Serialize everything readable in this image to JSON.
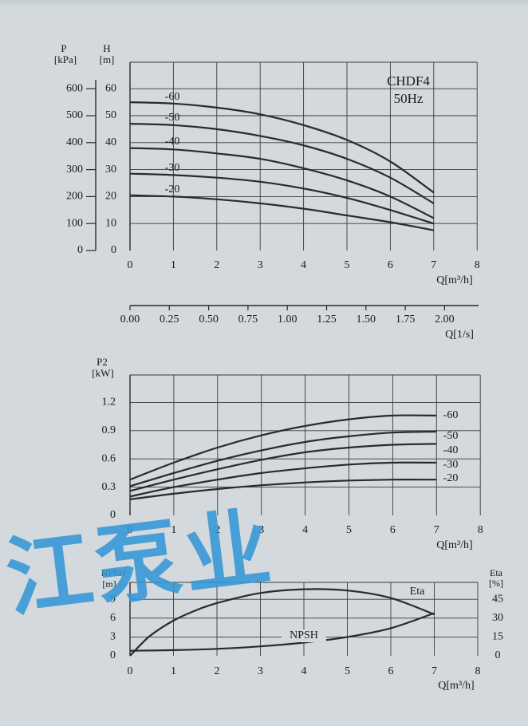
{
  "chart_data": [
    {
      "type": "line",
      "model": "CHDF4",
      "frequency": "50Hz",
      "x_label_q": "Q[m³/h]",
      "x_ticks_q": [
        0,
        1,
        2,
        3,
        4,
        5,
        6,
        7,
        8
      ],
      "x_label_ls": "Q[1/s]",
      "x_ticks_ls": [
        "0.00",
        "0.25",
        "0.50",
        "0.75",
        "1.00",
        "1.25",
        "1.50",
        "1.75",
        "2.00"
      ],
      "y_label_h": [
        "H",
        "[m]"
      ],
      "y_ticks_h": [
        0,
        10,
        20,
        30,
        40,
        50,
        60
      ],
      "y_label_p": [
        "P",
        "[kPa]"
      ],
      "y_ticks_p": [
        0,
        100,
        200,
        300,
        400,
        500,
        600
      ],
      "ylim": [
        0,
        60
      ],
      "xlim": [
        0,
        8
      ],
      "grid": true,
      "series": [
        {
          "name": "-60",
          "x": [
            0,
            1,
            2,
            3,
            4,
            5,
            6,
            7
          ],
          "values": [
            55,
            54.5,
            53,
            50.5,
            46.5,
            41,
            33,
            21.5
          ]
        },
        {
          "name": "-50",
          "x": [
            0,
            1,
            2,
            3,
            4,
            5,
            6,
            7
          ],
          "values": [
            47,
            46.5,
            45,
            42.5,
            39,
            34,
            27,
            17.5
          ]
        },
        {
          "name": "-40",
          "x": [
            0,
            1,
            2,
            3,
            4,
            5,
            6,
            7
          ],
          "values": [
            38,
            37.5,
            36,
            34,
            30.5,
            26,
            20,
            12
          ]
        },
        {
          "name": "-30",
          "x": [
            0,
            1,
            2,
            3,
            4,
            5,
            6,
            7
          ],
          "values": [
            28.5,
            28,
            27,
            25.5,
            23,
            19.5,
            15,
            10
          ]
        },
        {
          "name": "-20",
          "x": [
            0,
            1,
            2,
            3,
            4,
            5,
            6,
            7
          ],
          "values": [
            20.5,
            20,
            19,
            17.5,
            15.5,
            13,
            10.5,
            7.5
          ]
        }
      ]
    },
    {
      "type": "line",
      "y_label": [
        "P2",
        "[kW]"
      ],
      "y_ticks": [
        "0",
        "0.3",
        "0.6",
        "0.9",
        "1.2"
      ],
      "x_label": "Q[m³/h]",
      "x_ticks": [
        0,
        1,
        2,
        3,
        4,
        5,
        6,
        7,
        8
      ],
      "ylim": [
        0,
        1.5
      ],
      "xlim": [
        0,
        8
      ],
      "grid": true,
      "series": [
        {
          "name": "-60",
          "x": [
            0,
            1,
            2,
            3,
            4,
            5,
            6,
            7
          ],
          "values": [
            0.38,
            0.56,
            0.72,
            0.85,
            0.95,
            1.02,
            1.06,
            1.06
          ]
        },
        {
          "name": "-50",
          "x": [
            0,
            1,
            2,
            3,
            4,
            5,
            6,
            7
          ],
          "values": [
            0.31,
            0.45,
            0.58,
            0.69,
            0.78,
            0.84,
            0.88,
            0.89
          ]
        },
        {
          "name": "-40",
          "x": [
            0,
            1,
            2,
            3,
            4,
            5,
            6,
            7
          ],
          "values": [
            0.26,
            0.38,
            0.49,
            0.59,
            0.67,
            0.72,
            0.75,
            0.76
          ]
        },
        {
          "name": "-30",
          "x": [
            0,
            1,
            2,
            3,
            4,
            5,
            6,
            7
          ],
          "values": [
            0.2,
            0.3,
            0.38,
            0.45,
            0.5,
            0.54,
            0.56,
            0.56
          ]
        },
        {
          "name": "-20",
          "x": [
            0,
            1,
            2,
            3,
            4,
            5,
            6,
            7
          ],
          "values": [
            0.17,
            0.23,
            0.28,
            0.32,
            0.35,
            0.37,
            0.38,
            0.38
          ]
        }
      ]
    },
    {
      "type": "line",
      "y_label_left": [
        "NPSH",
        "[m]"
      ],
      "y_ticks_left": [
        "0",
        "3",
        "6",
        "9"
      ],
      "y_label_right": [
        "Eta",
        "[%]"
      ],
      "y_ticks_right": [
        "0",
        "15",
        "30",
        "45"
      ],
      "x_label": "Q[m³/h]",
      "x_ticks": [
        0,
        1,
        2,
        3,
        4,
        5,
        6,
        7,
        8
      ],
      "ylim": [
        0,
        12
      ],
      "xlim": [
        0,
        8
      ],
      "grid": true,
      "series": [
        {
          "name": "Eta",
          "axis": "right",
          "x": [
            0,
            0.25,
            0.5,
            1,
            1.5,
            2,
            3,
            4,
            5,
            6,
            7
          ],
          "values": [
            0,
            9,
            17,
            28,
            36,
            42,
            50,
            53,
            52,
            46,
            33
          ]
        },
        {
          "name": "NPSH",
          "axis": "left",
          "x": [
            0,
            1,
            2,
            3,
            4,
            5,
            6,
            7
          ],
          "values": [
            0.8,
            0.9,
            1.1,
            1.5,
            2.1,
            3.0,
            4.4,
            6.8
          ]
        }
      ]
    }
  ],
  "watermark": "江泵业",
  "colors": {
    "line": "#2a2a2a",
    "grid": "#3a3a3a",
    "background": "#d3d9dc",
    "watermark": "#3496d6"
  }
}
